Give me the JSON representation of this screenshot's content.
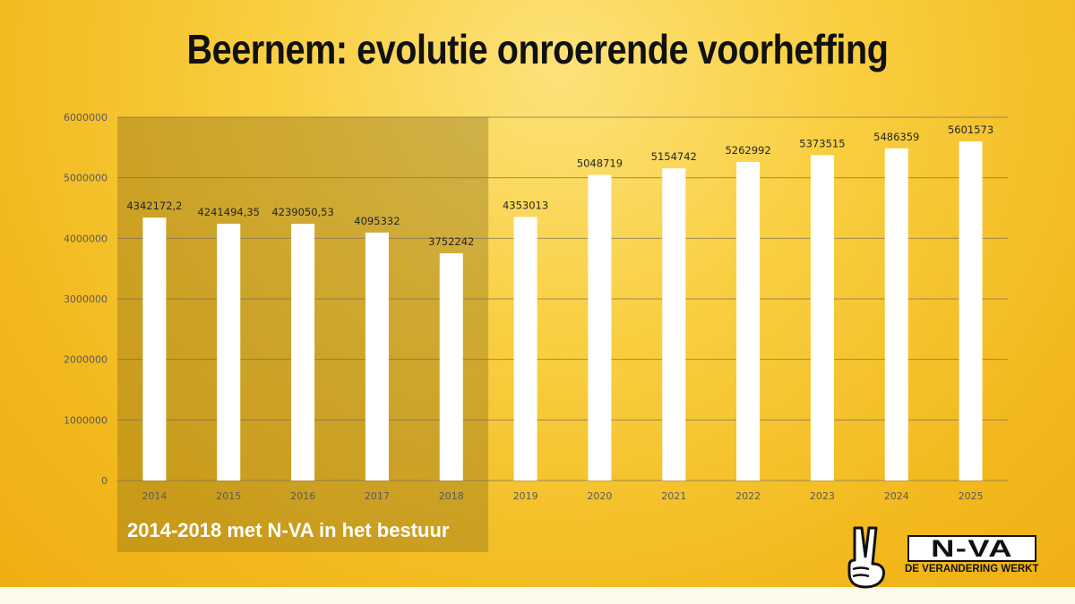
{
  "title": "Beernem: evolutie onroerende voorheffing",
  "highlight": {
    "label": "2014-2018 met N-VA in het bestuur",
    "from": "2014",
    "to": "2018"
  },
  "logo": {
    "wordmark": "N-VA",
    "tagline": "DE VERANDERING WERKT"
  },
  "colors": {
    "bar": "#ffffff",
    "highlight_overlay": "#8a6b17",
    "grid": "#7a6d55",
    "tick_text": "#595959",
    "label_text": "#262626"
  },
  "chart_data": {
    "type": "bar",
    "title": "Beernem: evolutie onroerende voorheffing",
    "xlabel": "",
    "ylabel": "",
    "ylim": [
      0,
      6000000
    ],
    "yticks": [
      "0",
      "1000000",
      "2000000",
      "3000000",
      "4000000",
      "5000000",
      "6000000"
    ],
    "grid": true,
    "legend": "none",
    "categories": [
      "2014",
      "2015",
      "2016",
      "2017",
      "2018",
      "2019",
      "2020",
      "2021",
      "2022",
      "2023",
      "2024",
      "2025"
    ],
    "values": [
      4342172.2,
      4241494.35,
      4239050.53,
      4095332,
      3752242,
      4353013,
      5048719,
      5154742,
      5262992,
      5373515,
      5486359,
      5601573
    ],
    "data_labels": [
      "4342172,2",
      "4241494,35",
      "4239050,53",
      "4095332",
      "3752242",
      "4353013",
      "5048719",
      "5154742",
      "5262992",
      "5373515",
      "5486359",
      "5601573"
    ]
  }
}
